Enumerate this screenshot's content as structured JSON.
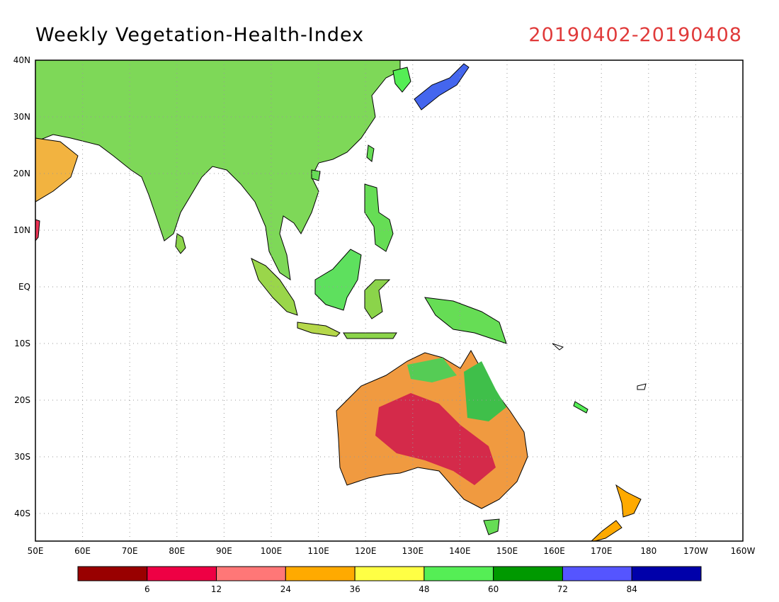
{
  "header": {
    "title": "Weekly Vegetation-Health-Index",
    "date_range": "20190402-20190408",
    "date_color": "#e03a3a"
  },
  "map": {
    "lat_labels": [
      "40N",
      "30N",
      "20N",
      "10N",
      "EQ",
      "10S",
      "20S",
      "30S",
      "40S"
    ],
    "lon_labels": [
      "50E",
      "60E",
      "70E",
      "80E",
      "90E",
      "100E",
      "110E",
      "120E",
      "130E",
      "140E",
      "150E",
      "160E",
      "170E",
      "180",
      "170W",
      "160W"
    ],
    "ocean_color": "#ffffff"
  },
  "legend": {
    "colors": [
      "#990000",
      "#ee0044",
      "#ff7777",
      "#ffaa00",
      "#ffff44",
      "#55ee55",
      "#009900",
      "#5555ff",
      "#0000aa"
    ],
    "labels": [
      "6",
      "12",
      "24",
      "36",
      "48",
      "60",
      "72",
      "84"
    ]
  }
}
